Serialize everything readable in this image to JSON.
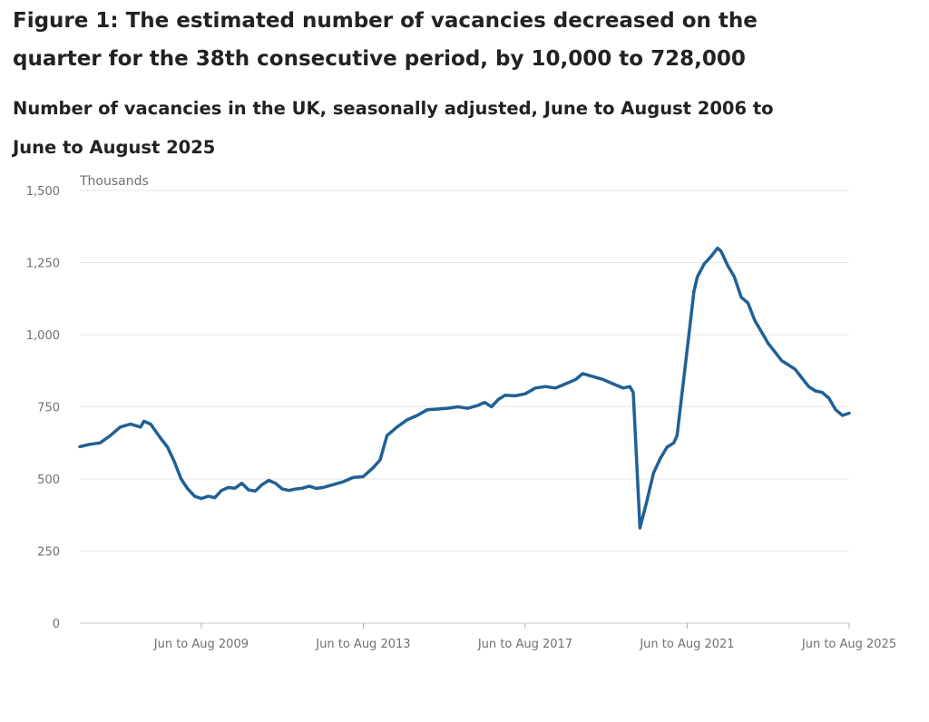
{
  "header": {
    "title": "Figure 1: The estimated number of vacancies decreased on the quarter for the 38th consecutive period, by 10,000 to 728,000",
    "subtitle": "Number of vacancies in the UK, seasonally adjusted, June to August 2006 to June to August 2025"
  },
  "chart_data": {
    "type": "line",
    "title": "Figure 1: The estimated number of vacancies decreased on the quarter for the 38th consecutive period, by 10,000 to 728,000",
    "subtitle": "Number of vacancies in the UK, seasonally adjusted, June to August 2006 to June to August 2025",
    "ylabel": "Thousands",
    "ylim": [
      0,
      1500
    ],
    "yticks": [
      0,
      250,
      500,
      750,
      1000,
      1250,
      1500
    ],
    "ytick_labels": [
      "0",
      "250",
      "500",
      "750",
      "1,000",
      "1,250",
      "1,500"
    ],
    "xticks": [
      "Jun to Aug 2009",
      "Jun to Aug 2013",
      "Jun to Aug 2017",
      "Jun to Aug 2021",
      "Jun to Aug 2025"
    ],
    "xlim": [
      "Jun to Aug 2006",
      "Jun to Aug 2025"
    ],
    "grid": "horizontal",
    "color": "#206095",
    "points": [
      [
        "Jun to Aug 2006",
        612
      ],
      [
        "Sep to Nov 2006",
        620
      ],
      [
        "Dec to Feb 2007",
        625
      ],
      [
        "Mar to May 2007",
        650
      ],
      [
        "Jun to Aug 2007",
        680
      ],
      [
        "Sep to Nov 2007",
        690
      ],
      [
        "Dec to Feb 2008",
        680
      ],
      [
        "Jan to Mar 2008",
        700
      ],
      [
        "Mar to May 2008",
        690
      ],
      [
        "Jun to Aug 2008",
        640
      ],
      [
        "Aug to Oct 2008",
        610
      ],
      [
        "Oct to Dec 2008",
        560
      ],
      [
        "Dec to Feb 2009",
        500
      ],
      [
        "Feb to Apr 2009",
        465
      ],
      [
        "Apr to Jun 2009",
        440
      ],
      [
        "Jun to Aug 2009",
        432
      ],
      [
        "Aug to Oct 2009",
        440
      ],
      [
        "Oct to Dec 2009",
        435
      ],
      [
        "Dec to Feb 2010",
        460
      ],
      [
        "Feb to Apr 2010",
        470
      ],
      [
        "Apr to Jun 2010",
        468
      ],
      [
        "Jun to Aug 2010",
        485
      ],
      [
        "Aug to Oct 2010",
        462
      ],
      [
        "Oct to Dec 2010",
        458
      ],
      [
        "Dec to Feb 2011",
        480
      ],
      [
        "Feb to Apr 2011",
        495
      ],
      [
        "Apr to Jun 2011",
        485
      ],
      [
        "Jun to Aug 2011",
        465
      ],
      [
        "Aug to Oct 2011",
        460
      ],
      [
        "Oct to Dec 2011",
        465
      ],
      [
        "Dec to Feb 2012",
        468
      ],
      [
        "Feb to Apr 2012",
        475
      ],
      [
        "Apr to Jun 2012",
        467
      ],
      [
        "Jun to Aug 2012",
        470
      ],
      [
        "Sep to Nov 2012",
        480
      ],
      [
        "Dec to Feb 2013",
        490
      ],
      [
        "Mar to May 2013",
        505
      ],
      [
        "Jun to Aug 2013",
        508
      ],
      [
        "Sep to Nov 2013",
        540
      ],
      [
        "Nov to Jan 2014",
        566
      ],
      [
        "Jan to Mar 2014",
        650
      ],
      [
        "Apr to Jun 2014",
        680
      ],
      [
        "Jul to Sep 2014",
        705
      ],
      [
        "Oct to Dec 2014",
        720
      ],
      [
        "Jan to Mar 2015",
        740
      ],
      [
        "Apr to Jun 2015",
        742
      ],
      [
        "Jul to Sep 2015",
        745
      ],
      [
        "Oct to Dec 2015",
        750
      ],
      [
        "Jan to Mar 2016",
        745
      ],
      [
        "Apr to Jun 2016",
        755
      ],
      [
        "Jun to Aug 2016",
        765
      ],
      [
        "Aug to Oct 2016",
        750
      ],
      [
        "Oct to Dec 2016",
        775
      ],
      [
        "Dec to Feb 2017",
        790
      ],
      [
        "Mar to May 2017",
        788
      ],
      [
        "Jun to Aug 2017",
        795
      ],
      [
        "Sep to Nov 2017",
        815
      ],
      [
        "Dec to Feb 2018",
        820
      ],
      [
        "Mar to May 2018",
        815
      ],
      [
        "Jun to Aug 2018",
        830
      ],
      [
        "Sep to Nov 2018",
        845
      ],
      [
        "Nov to Jan 2019",
        865
      ],
      [
        "Feb to Apr 2019",
        855
      ],
      [
        "May to Jul 2019",
        845
      ],
      [
        "Aug to Oct 2019",
        830
      ],
      [
        "Nov to Jan 2020",
        815
      ],
      [
        "Jan to Mar 2020",
        820
      ],
      [
        "Feb to Apr 2020",
        800
      ],
      [
        "Apr to Jun 2020",
        330
      ],
      [
        "Jun to Aug 2020",
        420
      ],
      [
        "Aug to Oct 2020",
        520
      ],
      [
        "Oct to Dec 2020",
        570
      ],
      [
        "Dec to Feb 2021",
        610
      ],
      [
        "Feb to Apr 2021",
        625
      ],
      [
        "Mar to May 2021",
        650
      ],
      [
        "Jun to Aug 2021",
        950
      ],
      [
        "Aug to Oct 2021",
        1150
      ],
      [
        "Sep to Nov 2021",
        1200
      ],
      [
        "Nov to Jan 2022",
        1245
      ],
      [
        "Jan to Mar 2022",
        1270
      ],
      [
        "Mar to May 2022",
        1300
      ],
      [
        "Apr to Jun 2022",
        1290
      ],
      [
        "Jun to Aug 2022",
        1240
      ],
      [
        "Aug to Oct 2022",
        1200
      ],
      [
        "Oct to Dec 2022",
        1130
      ],
      [
        "Dec to Feb 2023",
        1110
      ],
      [
        "Feb to Apr 2023",
        1050
      ],
      [
        "Apr to Jun 2023",
        1010
      ],
      [
        "Jun to Aug 2023",
        970
      ],
      [
        "Aug to Oct 2023",
        940
      ],
      [
        "Oct to Dec 2023",
        910
      ],
      [
        "Dec to Feb 2024",
        895
      ],
      [
        "Feb to Apr 2024",
        880
      ],
      [
        "Apr to Jun 2024",
        850
      ],
      [
        "Jun to Aug 2024",
        820
      ],
      [
        "Aug to Oct 2024",
        805
      ],
      [
        "Oct to Dec 2024",
        800
      ],
      [
        "Dec to Feb 2025",
        780
      ],
      [
        "Feb to Apr 2025",
        740
      ],
      [
        "Apr to Jun 2025",
        720
      ],
      [
        "Jun to Aug 2025",
        728
      ]
    ]
  }
}
